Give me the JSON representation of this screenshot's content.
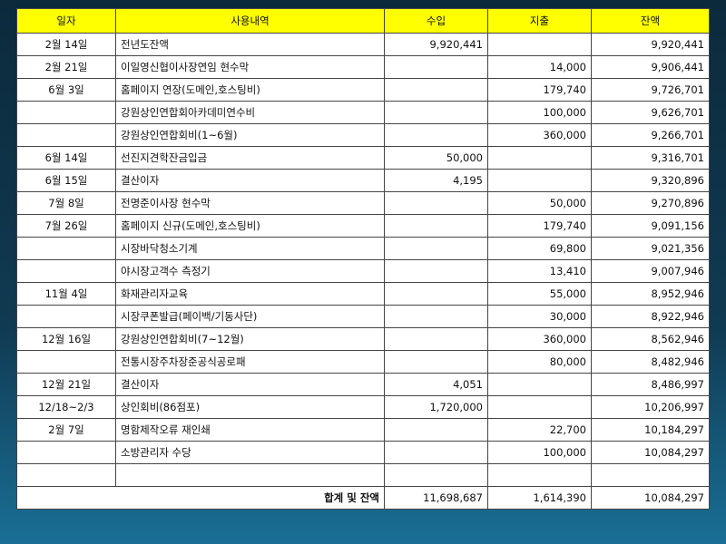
{
  "headers": [
    "일자",
    "사용내역",
    "수입",
    "지출",
    "잔액"
  ],
  "rows": [
    {
      "date": "2월 14일",
      "desc": "전년도잔액",
      "income": "9,920,441",
      "expense": "",
      "balance": "9,920,441"
    },
    {
      "date": "2월 21일",
      "desc": "이일영신협이사장연임 현수막",
      "income": "",
      "expense": "14,000",
      "balance": "9,906,441"
    },
    {
      "date": "6월 3일",
      "desc": "홈페이지 연장(도메인,호스팅비)",
      "income": "",
      "expense": "179,740",
      "balance": "9,726,701"
    },
    {
      "date": "",
      "desc": "강원상인연합회아카데미연수비",
      "income": "",
      "expense": "100,000",
      "balance": "9,626,701"
    },
    {
      "date": "",
      "desc": "강원상인연합회비(1~6월)",
      "income": "",
      "expense": "360,000",
      "balance": "9,266,701"
    },
    {
      "date": "6월 14일",
      "desc": "선진지견학잔금입금",
      "income": "50,000",
      "expense": "",
      "balance": "9,316,701"
    },
    {
      "date": "6월 15일",
      "desc": "결산이자",
      "income": "4,195",
      "expense": "",
      "balance": "9,320,896"
    },
    {
      "date": "7월 8일",
      "desc": "전명준이사장 현수막",
      "income": "",
      "expense": "50,000",
      "balance": "9,270,896"
    },
    {
      "date": "7월 26일",
      "desc": "홈페이지 신규(도메인,호스팅비)",
      "income": "",
      "expense": "179,740",
      "balance": "9,091,156"
    },
    {
      "date": "",
      "desc": "시장바닥청소기계",
      "income": "",
      "expense": "69,800",
      "balance": "9,021,356"
    },
    {
      "date": "",
      "desc": "야시장고객수 측정기",
      "income": "",
      "expense": "13,410",
      "balance": "9,007,946"
    },
    {
      "date": "11월 4일",
      "desc": "화재관리자교육",
      "income": "",
      "expense": "55,000",
      "balance": "8,952,946"
    },
    {
      "date": "",
      "desc": "시장쿠폰발급(페이백/기동사단)",
      "income": "",
      "expense": "30,000",
      "balance": "8,922,946"
    },
    {
      "date": "12월 16일",
      "desc": "강원상인연합회비(7~12월)",
      "income": "",
      "expense": "360,000",
      "balance": "8,562,946"
    },
    {
      "date": "",
      "desc": "전통시장주차장준공식공로패",
      "income": "",
      "expense": "80,000",
      "balance": "8,482,946"
    },
    {
      "date": "12월 21일",
      "desc": "결산이자",
      "income": "4,051",
      "expense": "",
      "balance": "8,486,997"
    },
    {
      "date": "12/18~2/3",
      "desc": "상인회비(86점포)",
      "income": "1,720,000",
      "expense": "",
      "balance": "10,206,997"
    },
    {
      "date": "2월 7일",
      "desc": "명함제작오류 재인쇄",
      "income": "",
      "expense": "22,700",
      "balance": "10,184,297"
    },
    {
      "date": "",
      "desc": "소방관리자 수당",
      "income": "",
      "expense": "100,000",
      "balance": "10,084,297"
    },
    {
      "date": "",
      "desc": "",
      "income": "",
      "expense": "",
      "balance": ""
    }
  ],
  "total": {
    "label": "합계 및 잔액",
    "income": "11,698,687",
    "expense": "1,614,390",
    "balance": "10,084,297"
  },
  "colors": {
    "header_bg": "#ffff00",
    "background": "#103a52"
  }
}
